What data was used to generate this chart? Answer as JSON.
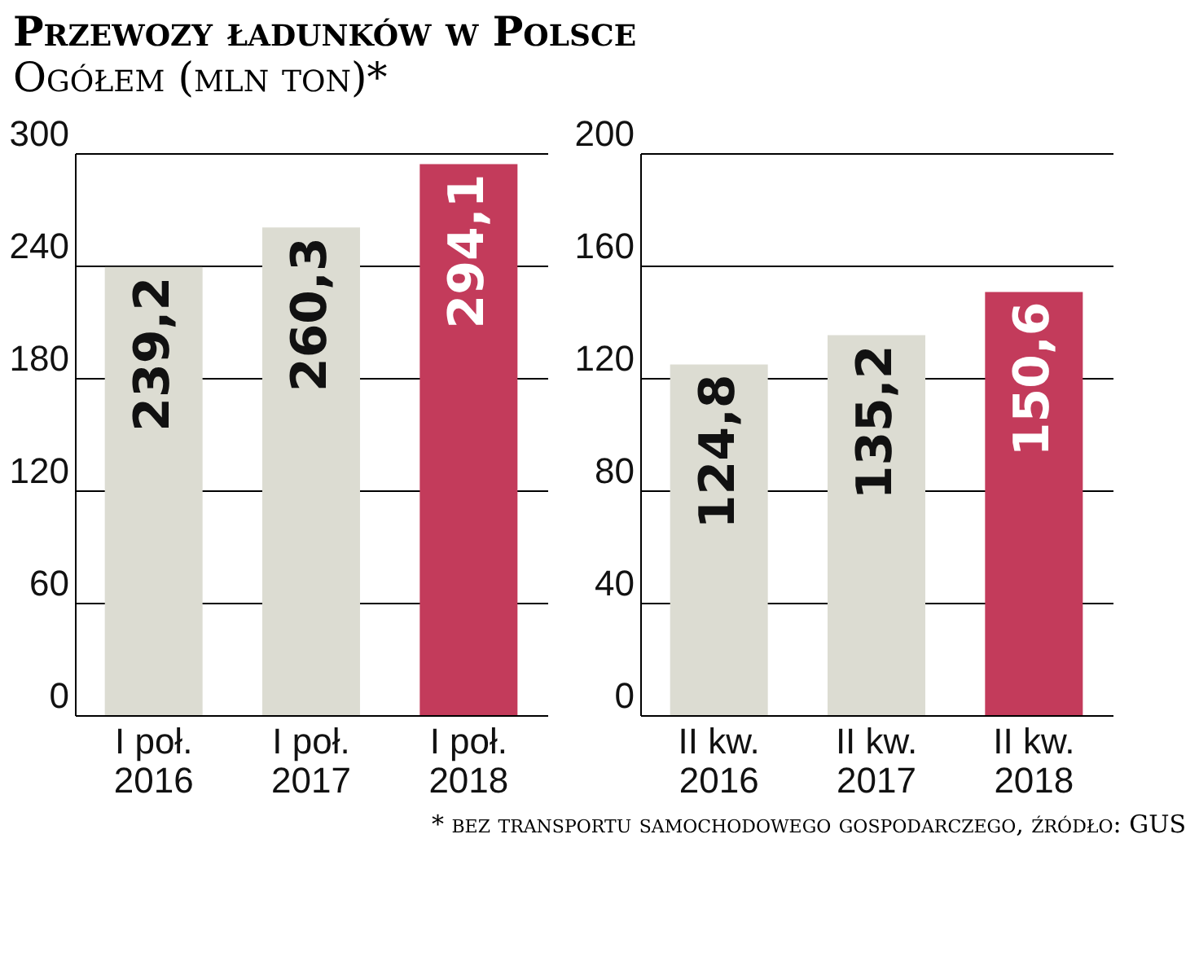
{
  "chart_data": [
    {
      "type": "bar",
      "title": "Przewozy ładunków w Polsce",
      "subtitle": "Ogółem (mln ton)*",
      "categories": [
        "I poł. 2016",
        "I poł. 2017",
        "I poł. 2018"
      ],
      "values": [
        239.2,
        260.3,
        294.1
      ],
      "colors": [
        "#dcdcd2",
        "#dcdcd2",
        "#c33b5b"
      ],
      "ylim": [
        0,
        300
      ],
      "yticks": [
        0,
        60,
        120,
        180,
        240,
        300
      ],
      "grid": "y",
      "value_labels": [
        "239,2",
        "260,3",
        "294,1"
      ]
    },
    {
      "type": "bar",
      "categories": [
        "II kw. 2016",
        "II kw. 2017",
        "II kw. 2018"
      ],
      "values": [
        124.8,
        135.2,
        150.6
      ],
      "colors": [
        "#dcdcd2",
        "#dcdcd2",
        "#c33b5b"
      ],
      "ylim": [
        0,
        200
      ],
      "yticks": [
        0,
        40,
        80,
        120,
        160,
        200
      ],
      "grid": "y",
      "value_labels": [
        "124,8",
        "135,2",
        "150,6"
      ],
      "annotations": [
        "* bez transportu samochodowego gospodarczego, źródło: GUS"
      ]
    }
  ]
}
